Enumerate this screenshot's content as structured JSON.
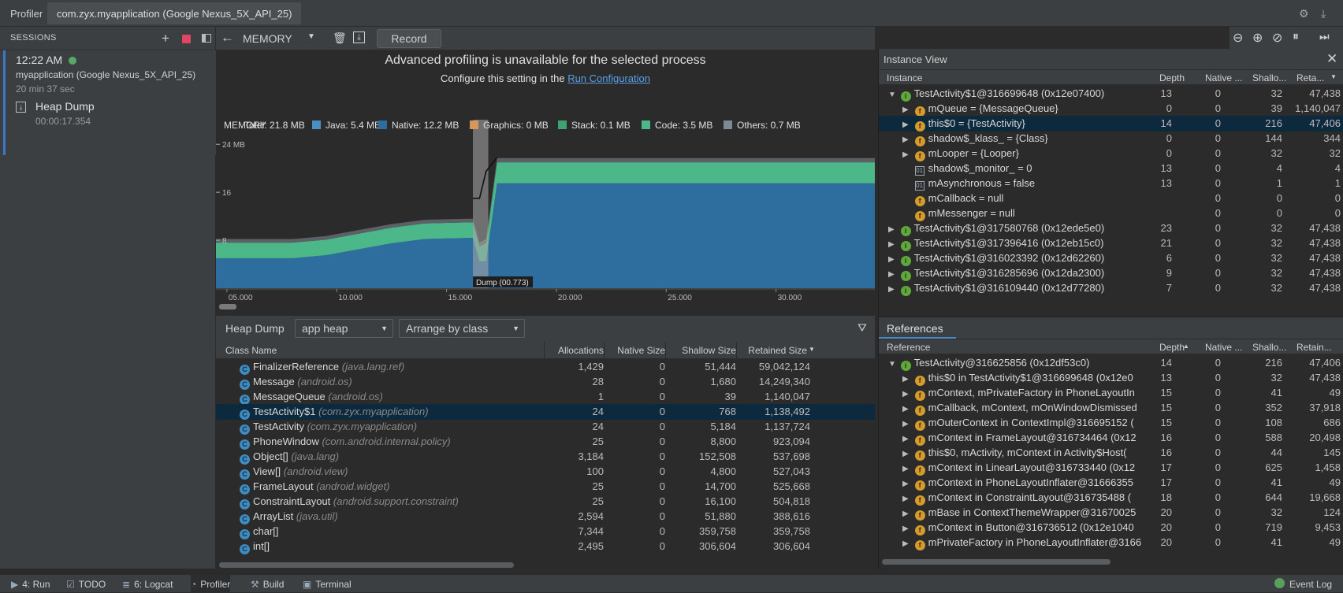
{
  "title_bar": {
    "app": "Profiler",
    "tab": "com.zyx.myapplication (Google Nexus_5X_API_25)"
  },
  "sessions": {
    "header": "SESSIONS",
    "session": {
      "time": "12:22 AM",
      "app": "myapplication (Google Nexus_5X_API_25)",
      "duration": "20 min 37 sec"
    },
    "artifact": {
      "label": "Heap Dump",
      "time": "00:00:17.354"
    }
  },
  "toolbar": {
    "profiler": "MEMORY",
    "record": "Record"
  },
  "banner": {
    "title": "Advanced profiling is unavailable for the selected process",
    "text": "Configure this setting in the",
    "link": "Run Configuration"
  },
  "memory_legend": [
    {
      "label": "Total: 21.8 MB",
      "color": "#9a9a9a"
    },
    {
      "label": "Java: 5.4 MB",
      "color": "#4a8fc4"
    },
    {
      "label": "Native: 12.2 MB",
      "color": "#2e6e9e"
    },
    {
      "label": "Graphics: 0 MB",
      "color": "#d5985a"
    },
    {
      "label": "Stack: 0.1 MB",
      "color": "#3fa371"
    },
    {
      "label": "Code: 3.5 MB",
      "color": "#4cb88a"
    },
    {
      "label": "Others: 0.7 MB",
      "color": "#7b8a96"
    }
  ],
  "chart_data": {
    "type": "area",
    "title": "MEMORY",
    "y_ticks": [
      "24 MB",
      "16",
      "8"
    ],
    "ylim": [
      0,
      26
    ],
    "x_ticks": [
      "05.000",
      "10.000",
      "15.000",
      "20.000",
      "25.000",
      "30.000"
    ],
    "xlim": [
      4.5,
      34.5
    ],
    "x": [
      4.5,
      8.0,
      9.5,
      11.0,
      12.5,
      14.0,
      15.0,
      16.2,
      16.5,
      16.8,
      17.3,
      34.5
    ],
    "series": [
      {
        "name": "Native",
        "values": [
          5.0,
          5.0,
          5.5,
          6.5,
          7.5,
          8.2,
          8.3,
          8.4,
          4.5,
          4.5,
          17.5,
          17.5
        ]
      },
      {
        "name": "Code",
        "values": [
          2.6,
          2.6,
          2.6,
          2.6,
          2.6,
          2.6,
          2.6,
          2.6,
          2.5,
          3.0,
          3.5,
          3.5
        ]
      },
      {
        "name": "Others",
        "values": [
          0.6,
          0.6,
          0.6,
          0.6,
          0.6,
          0.6,
          0.6,
          0.6,
          0.6,
          0.7,
          0.7,
          0.7
        ]
      }
    ],
    "total_line": [
      null,
      null,
      null,
      null,
      null,
      null,
      null,
      15.0,
      15.0,
      19.5,
      21.8,
      null
    ],
    "dump_marker": {
      "label": "Dump (00.773)",
      "start": 16.2,
      "end": 16.9
    }
  },
  "heap_toolbar": {
    "label": "Heap Dump",
    "heap": "app heap",
    "arrange": "Arrange by class"
  },
  "class_table": {
    "columns": [
      "Class Name",
      "Allocations",
      "Native Size",
      "Shallow Size",
      "Retained Size"
    ],
    "rows": [
      {
        "name": "FinalizerReference",
        "pkg": "(java.lang.ref)",
        "alloc": "1,429",
        "native": "0",
        "shallow": "51,444",
        "retained": "59,042,124"
      },
      {
        "name": "Message",
        "pkg": "(android.os)",
        "alloc": "28",
        "native": "0",
        "shallow": "1,680",
        "retained": "14,249,340"
      },
      {
        "name": "MessageQueue",
        "pkg": "(android.os)",
        "alloc": "1",
        "native": "0",
        "shallow": "39",
        "retained": "1,140,047"
      },
      {
        "name": "TestActivity$1",
        "pkg": "(com.zyx.myapplication)",
        "alloc": "24",
        "native": "0",
        "shallow": "768",
        "retained": "1,138,492"
      },
      {
        "name": "TestActivity",
        "pkg": "(com.zyx.myapplication)",
        "alloc": "24",
        "native": "0",
        "shallow": "5,184",
        "retained": "1,137,724"
      },
      {
        "name": "PhoneWindow",
        "pkg": "(com.android.internal.policy)",
        "alloc": "25",
        "native": "0",
        "shallow": "8,800",
        "retained": "923,094"
      },
      {
        "name": "Object[]",
        "pkg": "(java.lang)",
        "alloc": "3,184",
        "native": "0",
        "shallow": "152,508",
        "retained": "537,698"
      },
      {
        "name": "View[]",
        "pkg": "(android.view)",
        "alloc": "100",
        "native": "0",
        "shallow": "4,800",
        "retained": "527,043"
      },
      {
        "name": "FrameLayout",
        "pkg": "(android.widget)",
        "alloc": "25",
        "native": "0",
        "shallow": "14,700",
        "retained": "525,668"
      },
      {
        "name": "ConstraintLayout",
        "pkg": "(android.support.constraint)",
        "alloc": "25",
        "native": "0",
        "shallow": "16,100",
        "retained": "504,818"
      },
      {
        "name": "ArrayList",
        "pkg": "(java.util)",
        "alloc": "2,594",
        "native": "0",
        "shallow": "51,880",
        "retained": "388,616"
      },
      {
        "name": "char[]",
        "pkg": "",
        "alloc": "7,344",
        "native": "0",
        "shallow": "359,758",
        "retained": "359,758"
      },
      {
        "name": "int[]",
        "pkg": "",
        "alloc": "2,495",
        "native": "0",
        "shallow": "306,604",
        "retained": "306,604"
      }
    ]
  },
  "instance_view": {
    "title": "Instance View",
    "columns": [
      "Instance",
      "Depth",
      "Native ...",
      "Shallo...",
      "Reta..."
    ],
    "rows": [
      {
        "text": "TestActivity$1@316699648 (0x12e07400)",
        "icon": "i",
        "tri": "▼",
        "depth": "13",
        "native": "0",
        "shallow": "32",
        "retained": "47,438",
        "indent": 0
      },
      {
        "text": "mQueue = {MessageQueue}",
        "icon": "f",
        "tri": "▶",
        "depth": "0",
        "native": "0",
        "shallow": "39",
        "retained": "1,140,047",
        "indent": 1
      },
      {
        "text": "this$0 = {TestActivity}",
        "icon": "f",
        "tri": "▶",
        "depth": "14",
        "native": "0",
        "shallow": "216",
        "retained": "47,406",
        "indent": 1,
        "sel": true
      },
      {
        "text": "shadow$_klass_ = {Class}",
        "icon": "f",
        "tri": "▶",
        "depth": "0",
        "native": "0",
        "shallow": "144",
        "retained": "344",
        "indent": 1
      },
      {
        "text": "mLooper = {Looper}",
        "icon": "f",
        "tri": "▶",
        "depth": "0",
        "native": "0",
        "shallow": "32",
        "retained": "32",
        "indent": 1
      },
      {
        "text": "shadow$_monitor_ = 0",
        "icon": "p",
        "tri": "",
        "depth": "13",
        "native": "0",
        "shallow": "4",
        "retained": "4",
        "indent": 1
      },
      {
        "text": "mAsynchronous = false",
        "icon": "p",
        "tri": "",
        "depth": "13",
        "native": "0",
        "shallow": "1",
        "retained": "1",
        "indent": 1
      },
      {
        "text": "mCallback = null",
        "icon": "f",
        "tri": "",
        "depth": "",
        "native": "0",
        "shallow": "0",
        "retained": "0",
        "indent": 1
      },
      {
        "text": "mMessenger = null",
        "icon": "f",
        "tri": "",
        "depth": "",
        "native": "0",
        "shallow": "0",
        "retained": "0",
        "indent": 1
      },
      {
        "text": "TestActivity$1@317580768 (0x12ede5e0)",
        "icon": "i",
        "tri": "▶",
        "depth": "23",
        "native": "0",
        "shallow": "32",
        "retained": "47,438",
        "indent": 0
      },
      {
        "text": "TestActivity$1@317396416 (0x12eb15c0)",
        "icon": "i",
        "tri": "▶",
        "depth": "21",
        "native": "0",
        "shallow": "32",
        "retained": "47,438",
        "indent": 0
      },
      {
        "text": "TestActivity$1@316023392 (0x12d62260)",
        "icon": "i",
        "tri": "▶",
        "depth": "6",
        "native": "0",
        "shallow": "32",
        "retained": "47,438",
        "indent": 0
      },
      {
        "text": "TestActivity$1@316285696 (0x12da2300)",
        "icon": "i",
        "tri": "▶",
        "depth": "9",
        "native": "0",
        "shallow": "32",
        "retained": "47,438",
        "indent": 0
      },
      {
        "text": "TestActivity$1@316109440 (0x12d77280)",
        "icon": "i",
        "tri": "▶",
        "depth": "7",
        "native": "0",
        "shallow": "32",
        "retained": "47,438",
        "indent": 0
      }
    ]
  },
  "references": {
    "title": "References",
    "columns": [
      "Reference",
      "Depth",
      "Native ...",
      "Shallo...",
      "Retain..."
    ],
    "rows": [
      {
        "text": "TestActivity@316625856 (0x12df53c0)",
        "icon": "i",
        "tri": "▼",
        "depth": "14",
        "native": "0",
        "shallow": "216",
        "retained": "47,406",
        "indent": 0
      },
      {
        "text": "this$0 in TestActivity$1@316699648 (0x12e0",
        "icon": "f",
        "tri": "▶",
        "depth": "13",
        "native": "0",
        "shallow": "32",
        "retained": "47,438",
        "indent": 1
      },
      {
        "text": "mContext, mPrivateFactory in PhoneLayoutIn",
        "icon": "f",
        "tri": "▶",
        "depth": "15",
        "native": "0",
        "shallow": "41",
        "retained": "49",
        "indent": 1
      },
      {
        "text": "mCallback, mContext, mOnWindowDismissed",
        "icon": "f",
        "tri": "▶",
        "depth": "15",
        "native": "0",
        "shallow": "352",
        "retained": "37,918",
        "indent": 1
      },
      {
        "text": "mOuterContext in ContextImpl@316695152 (",
        "icon": "f",
        "tri": "▶",
        "depth": "15",
        "native": "0",
        "shallow": "108",
        "retained": "686",
        "indent": 1
      },
      {
        "text": "mContext in FrameLayout@316734464 (0x12",
        "icon": "f",
        "tri": "▶",
        "depth": "16",
        "native": "0",
        "shallow": "588",
        "retained": "20,498",
        "indent": 1
      },
      {
        "text": "this$0, mActivity, mContext in Activity$Host(",
        "icon": "f",
        "tri": "▶",
        "depth": "16",
        "native": "0",
        "shallow": "44",
        "retained": "145",
        "indent": 1
      },
      {
        "text": "mContext in LinearLayout@316733440 (0x12",
        "icon": "f",
        "tri": "▶",
        "depth": "17",
        "native": "0",
        "shallow": "625",
        "retained": "1,458",
        "indent": 1
      },
      {
        "text": "mContext in PhoneLayoutInflater@31666355",
        "icon": "f",
        "tri": "▶",
        "depth": "17",
        "native": "0",
        "shallow": "41",
        "retained": "49",
        "indent": 1
      },
      {
        "text": "mContext in ConstraintLayout@316735488 (",
        "icon": "f",
        "tri": "▶",
        "depth": "18",
        "native": "0",
        "shallow": "644",
        "retained": "19,668",
        "indent": 1
      },
      {
        "text": "mBase in ContextThemeWrapper@31670025",
        "icon": "f",
        "tri": "▶",
        "depth": "20",
        "native": "0",
        "shallow": "32",
        "retained": "124",
        "indent": 1
      },
      {
        "text": "mContext in Button@316736512 (0x12e1040",
        "icon": "f",
        "tri": "▶",
        "depth": "20",
        "native": "0",
        "shallow": "719",
        "retained": "9,453",
        "indent": 1
      },
      {
        "text": "mPrivateFactory in PhoneLayoutInflater@3166",
        "icon": "f",
        "tri": "▶",
        "depth": "20",
        "native": "0",
        "shallow": "41",
        "retained": "49",
        "indent": 1
      }
    ]
  },
  "status_bar": [
    {
      "label": "4: Run",
      "icon": "run-icon",
      "glyph": "▶"
    },
    {
      "label": "TODO",
      "icon": "todo-icon",
      "glyph": "☑"
    },
    {
      "label": "6: Logcat",
      "icon": "logcat-icon",
      "glyph": "≣"
    },
    {
      "label": "Profiler",
      "icon": "profiler-icon",
      "glyph": "◔"
    },
    {
      "label": "Build",
      "icon": "build-icon",
      "glyph": "⚒"
    },
    {
      "label": "Terminal",
      "icon": "terminal-icon",
      "glyph": "▣"
    }
  ],
  "event_log": "Event Log"
}
